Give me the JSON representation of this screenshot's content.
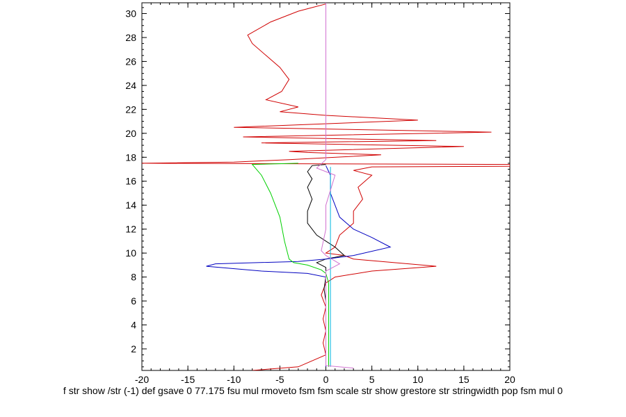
{
  "chart_data": {
    "type": "line",
    "title": "",
    "xlabel": "",
    "ylabel": "",
    "caption": "f str show /str (-1) def gsave 0 77.175 fsu mul rmoveto fsm fsm scale str show grestore str stringwidth pop fsm mul 0",
    "xlim": [
      -20,
      20
    ],
    "ylim": [
      0.2,
      30.9
    ],
    "x_ticks": [
      -20,
      -15,
      -10,
      -5,
      0,
      5,
      10,
      15,
      20
    ],
    "y_ticks": [
      2,
      4,
      6,
      8,
      10,
      12,
      14,
      16,
      18,
      20,
      22,
      24,
      26,
      28,
      30
    ],
    "grid": false,
    "legend": "none",
    "series": [
      {
        "color": "#d00000",
        "points": [
          [
            0,
            30.8
          ],
          [
            -1.5,
            30.5
          ],
          [
            -3,
            30.2
          ],
          [
            -6,
            29.3
          ],
          [
            -8.5,
            28.2
          ],
          [
            -8,
            27.5
          ],
          [
            -6.5,
            26.5
          ],
          [
            -5,
            25.5
          ],
          [
            -4,
            24.5
          ],
          [
            -4.8,
            23.5
          ],
          [
            -6.5,
            22.8
          ],
          [
            -3,
            22.2
          ],
          [
            -5,
            21.8
          ],
          [
            0,
            21.5
          ],
          [
            10,
            21.1
          ],
          [
            -10,
            20.5
          ],
          [
            18,
            20.1
          ],
          [
            -9,
            19.7
          ],
          [
            12,
            19.4
          ],
          [
            -7,
            19.2
          ],
          [
            15,
            18.9
          ],
          [
            -4,
            18.5
          ],
          [
            -2,
            18.4
          ],
          [
            6,
            18.2
          ],
          [
            -4,
            17.8
          ],
          [
            -10,
            17.6
          ],
          [
            -20,
            17.5
          ],
          [
            20,
            17.4
          ],
          [
            20,
            17.25
          ],
          [
            5,
            17.2
          ],
          [
            3,
            16.9
          ],
          [
            5,
            16.5
          ],
          [
            3.5,
            15.5
          ],
          [
            4,
            14.5
          ],
          [
            3,
            13.5
          ],
          [
            3,
            12.5
          ],
          [
            1.5,
            11.5
          ],
          [
            1,
            10.5
          ],
          [
            0,
            10.0
          ],
          [
            2,
            9.8
          ],
          [
            3,
            9.5
          ],
          [
            12,
            8.9
          ],
          [
            5,
            8.5
          ],
          [
            1,
            8.0
          ],
          [
            0,
            7.5
          ],
          [
            -0.5,
            6.5
          ],
          [
            0,
            5.5
          ],
          [
            -0.3,
            4.5
          ],
          [
            0,
            3.5
          ],
          [
            -0.3,
            2.5
          ],
          [
            0,
            1.5
          ],
          [
            -3,
            0.5
          ],
          [
            -8,
            0.2
          ]
        ]
      },
      {
        "color": "#000000",
        "points": [
          [
            0,
            17.4
          ],
          [
            -1.5,
            17.3
          ],
          [
            -2,
            16.8
          ],
          [
            -1.5,
            16.2
          ],
          [
            -2,
            15.5
          ],
          [
            -1.5,
            14.5
          ],
          [
            -2,
            13.5
          ],
          [
            -2,
            12.5
          ],
          [
            -1,
            11.5
          ],
          [
            0,
            11.0
          ],
          [
            1,
            10.5
          ],
          [
            2,
            9.8
          ],
          [
            0,
            9.5
          ],
          [
            -1,
            9.2
          ],
          [
            0,
            8.8
          ],
          [
            0,
            8.0
          ],
          [
            -0.2,
            7.0
          ],
          [
            0,
            6.0
          ],
          [
            0,
            5.0
          ],
          [
            0,
            4.0
          ],
          [
            0,
            3.0
          ],
          [
            0,
            2.0
          ],
          [
            0,
            0.5
          ]
        ]
      },
      {
        "color": "#0000c0",
        "points": [
          [
            0,
            17.3
          ],
          [
            0.5,
            16.5
          ],
          [
            0.5,
            15.0
          ],
          [
            1,
            14.0
          ],
          [
            1.5,
            13.0
          ],
          [
            3,
            12.0
          ],
          [
            5,
            11.3
          ],
          [
            7,
            10.5
          ],
          [
            3,
            9.8
          ],
          [
            0,
            9.5
          ],
          [
            -3,
            9.3
          ],
          [
            -12,
            9.1
          ],
          [
            -13,
            8.9
          ],
          [
            -7,
            8.5
          ],
          [
            -2,
            8.3
          ],
          [
            0,
            8.0
          ],
          [
            0,
            6.5
          ],
          [
            0,
            5.0
          ],
          [
            0,
            3.5
          ],
          [
            0,
            2.0
          ],
          [
            0,
            0.5
          ]
        ]
      },
      {
        "color": "#00d000",
        "points": [
          [
            -3,
            17.5
          ],
          [
            -8,
            17.4
          ],
          [
            -7,
            16.5
          ],
          [
            -6,
            15.0
          ],
          [
            -5,
            13.0
          ],
          [
            -4.5,
            11.0
          ],
          [
            -4,
            9.5
          ],
          [
            -3.5,
            9.2
          ],
          [
            -2,
            9.0
          ],
          [
            -0.5,
            8.6
          ],
          [
            0,
            8.3
          ],
          [
            0.3,
            7.5
          ],
          [
            0.3,
            5.5
          ],
          [
            0.3,
            3.0
          ],
          [
            0.3,
            0.5
          ]
        ]
      },
      {
        "color": "#00b8e0",
        "points": [
          [
            0.5,
            17.2
          ],
          [
            0.5,
            16.0
          ],
          [
            0.5,
            14.0
          ],
          [
            0.5,
            12.0
          ],
          [
            0.5,
            10.0
          ],
          [
            0.5,
            8.0
          ],
          [
            0.5,
            6.0
          ],
          [
            0.5,
            4.0
          ],
          [
            0.5,
            2.0
          ],
          [
            0.5,
            0.5
          ]
        ]
      },
      {
        "color": "#d070d0",
        "points": [
          [
            0,
            30.9
          ],
          [
            0,
            25.0
          ],
          [
            0,
            20.0
          ],
          [
            0,
            17.8
          ],
          [
            -1,
            17.1
          ],
          [
            1,
            16.5
          ],
          [
            0,
            14.0
          ],
          [
            0,
            12.0
          ],
          [
            -0.5,
            10.2
          ],
          [
            0,
            9.8
          ],
          [
            1.5,
            9.1
          ],
          [
            0,
            8.5
          ],
          [
            0,
            6.0
          ],
          [
            0,
            3.0
          ],
          [
            0,
            0.6
          ],
          [
            3,
            0.4
          ]
        ]
      }
    ]
  }
}
